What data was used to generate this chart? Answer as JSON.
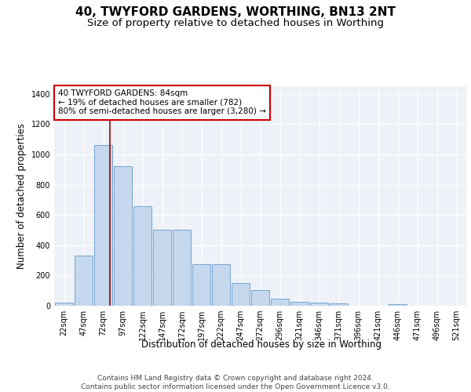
{
  "title": "40, TWYFORD GARDENS, WORTHING, BN13 2NT",
  "subtitle": "Size of property relative to detached houses in Worthing",
  "xlabel": "Distribution of detached houses by size in Worthing",
  "ylabel": "Number of detached properties",
  "categories": [
    "22sqm",
    "47sqm",
    "72sqm",
    "97sqm",
    "122sqm",
    "147sqm",
    "172sqm",
    "197sqm",
    "222sqm",
    "247sqm",
    "272sqm",
    "296sqm",
    "321sqm",
    "346sqm",
    "371sqm",
    "396sqm",
    "421sqm",
    "446sqm",
    "471sqm",
    "496sqm",
    "521sqm"
  ],
  "values": [
    20,
    330,
    1060,
    920,
    660,
    500,
    500,
    275,
    275,
    150,
    105,
    45,
    25,
    22,
    15,
    0,
    0,
    10,
    0,
    0,
    0
  ],
  "bar_color": "#c5d8ed",
  "bar_edgecolor": "#6699cc",
  "background_color": "#eef2f8",
  "grid_color": "#ffffff",
  "vline_color": "#990000",
  "vline_x": 2.35,
  "annotation_text": "40 TWYFORD GARDENS: 84sqm\n← 19% of detached houses are smaller (782)\n80% of semi-detached houses are larger (3,280) →",
  "annotation_box_edgecolor": "#cc0000",
  "ylim": [
    0,
    1450
  ],
  "yticks": [
    0,
    200,
    400,
    600,
    800,
    1000,
    1200,
    1400
  ],
  "footer_text": "Contains HM Land Registry data © Crown copyright and database right 2024.\nContains public sector information licensed under the Open Government Licence v3.0.",
  "title_fontsize": 11,
  "subtitle_fontsize": 9.5,
  "ylabel_fontsize": 8.5,
  "xlabel_fontsize": 8.5,
  "tick_fontsize": 7,
  "annotation_fontsize": 7.5,
  "footer_fontsize": 6.5
}
